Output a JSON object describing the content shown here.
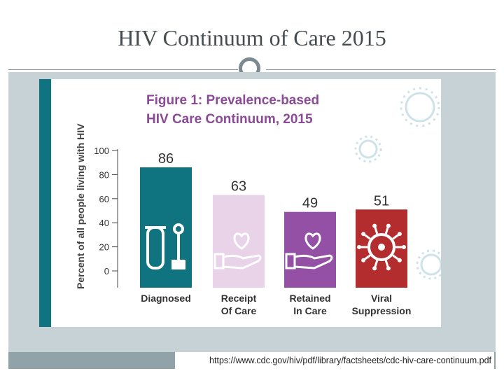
{
  "slide": {
    "title": "HIV Continuum of Care 2015",
    "source": "https://www.cdc.gov/hiv/pdf/library/factsheets/cdc-hiv-care-continuum.pdf"
  },
  "colors": {
    "teal": "#0f7480",
    "pink": "#e8d3e8",
    "purple": "#9450a4",
    "red": "#b42d2e",
    "title_text": "#8a4a96",
    "axis": "#444444"
  },
  "chart_data": {
    "type": "bar",
    "title_line1": "Figure 1: Prevalence-based",
    "title_line2": "HIV Care Continuum, 2015",
    "ylabel": "Percent of all people living with HIV",
    "ylim": [
      0,
      100
    ],
    "yticks": [
      "100",
      "80",
      "60",
      "40",
      "20",
      "0"
    ],
    "categories": [
      {
        "line1": "Diagnosed",
        "line2": ""
      },
      {
        "line1": "Receipt",
        "line2": "Of Care"
      },
      {
        "line1": "Retained",
        "line2": "In Care"
      },
      {
        "line1": "Viral",
        "line2": "Suppression"
      }
    ],
    "values": [
      86,
      63,
      49,
      51
    ],
    "value_labels": [
      "86",
      "63",
      "49",
      "51"
    ],
    "icons": [
      "test-tube-swab-icon",
      "heart-in-hand-icon",
      "heart-in-hand-icon",
      "virus-icon"
    ]
  }
}
